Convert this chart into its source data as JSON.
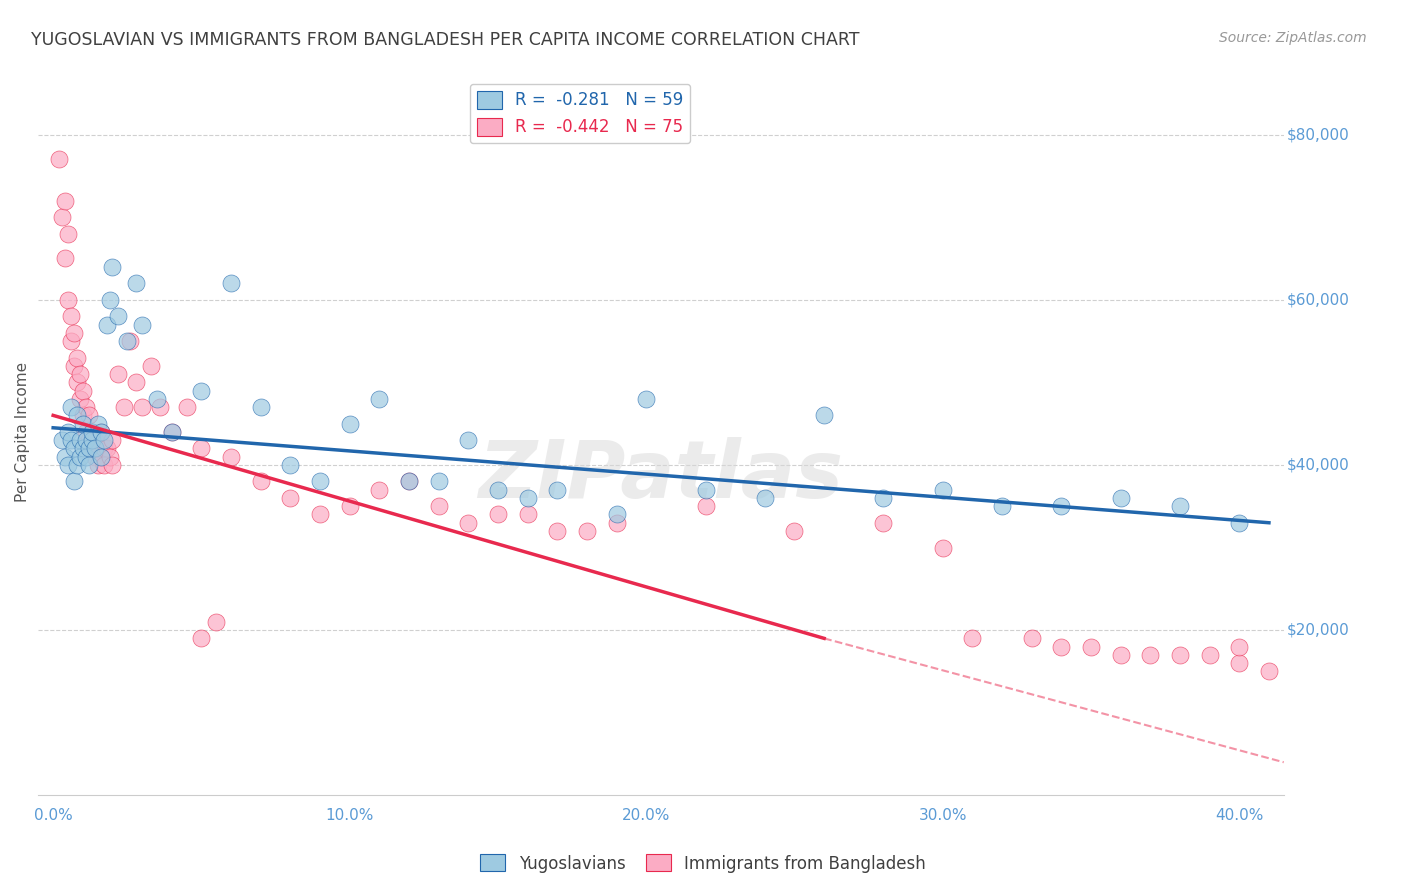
{
  "title": "YUGOSLAVIAN VS IMMIGRANTS FROM BANGLADESH PER CAPITA INCOME CORRELATION CHART",
  "source": "Source: ZipAtlas.com",
  "ylabel": "Per Capita Income",
  "xlabel_ticks": [
    "0.0%",
    "10.0%",
    "20.0%",
    "30.0%",
    "40.0%"
  ],
  "xlabel_vals": [
    0.0,
    0.1,
    0.2,
    0.3,
    0.4
  ],
  "ytick_labels": [
    "$20,000",
    "$40,000",
    "$60,000",
    "$80,000"
  ],
  "ytick_vals": [
    20000,
    40000,
    60000,
    80000
  ],
  "ylim": [
    0,
    88000
  ],
  "xlim": [
    -0.005,
    0.415
  ],
  "legend_label1": "R =  -0.281   N = 59",
  "legend_label2": "R =  -0.442   N = 75",
  "legend_color1": "#6baed6",
  "legend_color2": "#fc8fa8",
  "line1_color": "#2166ac",
  "line2_color": "#e8294e",
  "scatter1_color": "#9ecae1",
  "scatter2_color": "#fbacc4",
  "background_color": "#ffffff",
  "grid_color": "#d0d0d0",
  "axis_label_color": "#5b9bd5",
  "title_color": "#404040",
  "source_color": "#999999",
  "bottom_legend_label1": "Yugoslavians",
  "bottom_legend_label2": "Immigrants from Bangladesh",
  "yug_x": [
    0.003,
    0.004,
    0.005,
    0.005,
    0.006,
    0.006,
    0.007,
    0.007,
    0.008,
    0.008,
    0.009,
    0.009,
    0.01,
    0.01,
    0.011,
    0.011,
    0.012,
    0.012,
    0.013,
    0.013,
    0.014,
    0.015,
    0.016,
    0.016,
    0.017,
    0.018,
    0.019,
    0.02,
    0.022,
    0.025,
    0.028,
    0.03,
    0.035,
    0.04,
    0.05,
    0.06,
    0.07,
    0.08,
    0.09,
    0.1,
    0.11,
    0.12,
    0.13,
    0.14,
    0.15,
    0.16,
    0.17,
    0.19,
    0.2,
    0.22,
    0.24,
    0.26,
    0.28,
    0.3,
    0.32,
    0.34,
    0.36,
    0.38,
    0.4
  ],
  "yug_y": [
    43000,
    41000,
    40000,
    44000,
    43000,
    47000,
    38000,
    42000,
    40000,
    46000,
    43000,
    41000,
    42000,
    45000,
    41000,
    43000,
    42000,
    40000,
    43000,
    44000,
    42000,
    45000,
    41000,
    44000,
    43000,
    57000,
    60000,
    64000,
    58000,
    55000,
    62000,
    57000,
    48000,
    44000,
    49000,
    62000,
    47000,
    40000,
    38000,
    45000,
    48000,
    38000,
    38000,
    43000,
    37000,
    36000,
    37000,
    34000,
    48000,
    37000,
    36000,
    46000,
    36000,
    37000,
    35000,
    35000,
    36000,
    35000,
    33000
  ],
  "ban_x": [
    0.002,
    0.003,
    0.004,
    0.004,
    0.005,
    0.005,
    0.006,
    0.006,
    0.007,
    0.007,
    0.008,
    0.008,
    0.009,
    0.009,
    0.01,
    0.01,
    0.011,
    0.011,
    0.012,
    0.012,
    0.013,
    0.013,
    0.014,
    0.014,
    0.015,
    0.015,
    0.016,
    0.016,
    0.017,
    0.017,
    0.018,
    0.019,
    0.02,
    0.02,
    0.022,
    0.024,
    0.026,
    0.028,
    0.03,
    0.033,
    0.036,
    0.04,
    0.045,
    0.05,
    0.06,
    0.07,
    0.08,
    0.09,
    0.1,
    0.11,
    0.13,
    0.15,
    0.17,
    0.19,
    0.22,
    0.25,
    0.28,
    0.3,
    0.31,
    0.33,
    0.34,
    0.35,
    0.36,
    0.37,
    0.38,
    0.39,
    0.4,
    0.4,
    0.41,
    0.05,
    0.055,
    0.12,
    0.14,
    0.16,
    0.18
  ],
  "ban_y": [
    77000,
    70000,
    65000,
    72000,
    60000,
    68000,
    55000,
    58000,
    52000,
    56000,
    50000,
    53000,
    48000,
    51000,
    46000,
    49000,
    44000,
    47000,
    43000,
    46000,
    42000,
    44000,
    41000,
    43000,
    40000,
    42000,
    41000,
    44000,
    40000,
    42000,
    42000,
    41000,
    40000,
    43000,
    51000,
    47000,
    55000,
    50000,
    47000,
    52000,
    47000,
    44000,
    47000,
    42000,
    41000,
    38000,
    36000,
    34000,
    35000,
    37000,
    35000,
    34000,
    32000,
    33000,
    35000,
    32000,
    33000,
    30000,
    19000,
    19000,
    18000,
    18000,
    17000,
    17000,
    17000,
    17000,
    16000,
    18000,
    15000,
    19000,
    21000,
    38000,
    33000,
    34000,
    32000
  ],
  "line1_x0": 0.0,
  "line1_y0": 44500,
  "line1_x1": 0.41,
  "line1_y1": 33000,
  "line2_x0": 0.0,
  "line2_y0": 46000,
  "line2_x1": 0.26,
  "line2_y1": 19000,
  "line2_dash_x0": 0.26,
  "line2_dash_y0": 19000,
  "line2_dash_x1": 0.415,
  "line2_dash_y1": 4000
}
